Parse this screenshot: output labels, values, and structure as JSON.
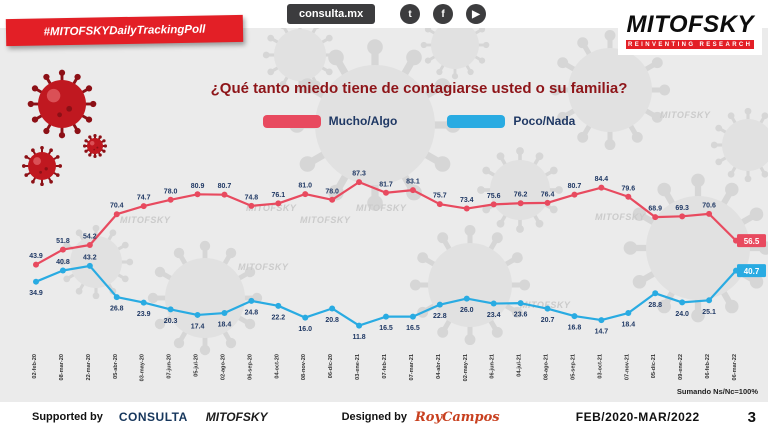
{
  "header": {
    "hashtag": "#MITOFSKYDailyTrackingPoll",
    "site": "consulta.mx",
    "social": [
      {
        "name": "twitter",
        "glyph": "t"
      },
      {
        "name": "facebook",
        "glyph": "f"
      },
      {
        "name": "youtube",
        "glyph": "▶"
      }
    ],
    "brand": {
      "name": "MITOFSKY",
      "tagline": "REINVENTING RESEARCH"
    }
  },
  "title": "¿Qué tanto miedo tiene de contagiarse usted o su familia?",
  "legend": [
    {
      "label": "Mucho/Algo",
      "color": "#e84a5f"
    },
    {
      "label": "Poco/Nada",
      "color": "#29abe2"
    }
  ],
  "watermark": "MITOFSKY",
  "chart_data": {
    "type": "line",
    "title": "¿Qué tanto miedo tiene de contagiarse usted o su familia?",
    "xlabel": "",
    "ylabel": "",
    "ylim": [
      0,
      100
    ],
    "grid": false,
    "legend_position": "top",
    "categories": [
      "02-feb-20",
      "08-mar-20",
      "22-mar-20",
      "05-abr-20",
      "03-may-20",
      "07-jun-20",
      "05-jul-20",
      "02-ago-20",
      "06-sep-20",
      "04-oct-20",
      "08-nov-20",
      "06-dic-20",
      "03-ene-21",
      "07-feb-21",
      "07-mar-21",
      "04-abr-21",
      "02-may-21",
      "06-jun-21",
      "04-jul-21",
      "08-ago-21",
      "05-sep-21",
      "03-oct-21",
      "07-nov-21",
      "05-dic-21",
      "09-ene-22",
      "06-feb-22",
      "06-mar-22"
    ],
    "series": [
      {
        "name": "Mucho/Algo",
        "color": "#e84a5f",
        "values": [
          43.9,
          51.8,
          54.2,
          70.4,
          74.7,
          78.0,
          80.9,
          80.7,
          74.8,
          76.1,
          81.0,
          78.0,
          87.3,
          81.7,
          83.1,
          75.7,
          73.4,
          75.6,
          76.2,
          76.4,
          80.7,
          84.4,
          79.6,
          68.9,
          69.3,
          70.6,
          56.5
        ]
      },
      {
        "name": "Poco/Nada",
        "color": "#29abe2",
        "values": [
          34.9,
          40.8,
          43.2,
          26.8,
          23.9,
          20.3,
          17.4,
          18.4,
          24.8,
          22.2,
          16.0,
          20.8,
          11.8,
          16.5,
          16.5,
          22.8,
          26.0,
          23.4,
          23.6,
          20.7,
          16.8,
          14.7,
          18.4,
          28.8,
          24.0,
          25.1,
          40.7
        ]
      }
    ]
  },
  "note": "Sumando Ns/Nc=100%",
  "footer": {
    "supported_by": "Supported by",
    "consulta": "CONSULTA",
    "mitofsky": "MITOFSKY",
    "designed_by": "Designed by",
    "designer": "RoyCampos",
    "period": "FEB/2020-MAR/2022",
    "page": "3"
  }
}
